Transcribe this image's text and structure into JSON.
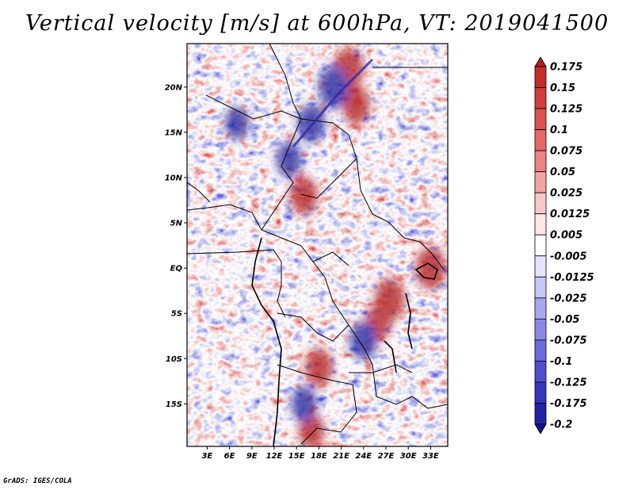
{
  "map": {
    "title": "Vertical velocity [m/s] at 600hPa, VT: 2019041500",
    "lon_labels": [
      "3E",
      "6E",
      "9E",
      "12E",
      "15E",
      "18E",
      "21E",
      "24E",
      "27E",
      "30E",
      "33E"
    ],
    "lon_values": [
      3,
      6,
      9,
      12,
      15,
      18,
      21,
      24,
      27,
      30,
      33
    ],
    "lat_labels": [
      "20N",
      "15N",
      "10N",
      "5N",
      "EQ",
      "5S",
      "10S",
      "15S"
    ],
    "lat_values": [
      20,
      15,
      10,
      5,
      0,
      -5,
      -10,
      -15
    ],
    "lon_range": [
      0.3,
      35.3
    ],
    "lat_range": [
      -19.7,
      24.8
    ],
    "colorbar": {
      "labels": [
        "0.175",
        "0.15",
        "0.125",
        "0.1",
        "0.075",
        "0.05",
        "0.025",
        "0.0125",
        "0.005",
        "-0.005",
        "-0.0125",
        "-0.025",
        "-0.05",
        "-0.075",
        "-0.1",
        "-0.125",
        "-0.175",
        "-0.2"
      ],
      "colors": [
        "#b41e1e",
        "#c52b2b",
        "#d23c3c",
        "#dc5252",
        "#e46868",
        "#ec8484",
        "#f2a4a4",
        "#f8c8c8",
        "#fde6e6",
        "#ffffff",
        "#e4e4fb",
        "#c8c8f5",
        "#a8a8ee",
        "#8a8ae6",
        "#6c6cdc",
        "#4f4fcf",
        "#3636bd",
        "#2222a6",
        "#12128c"
      ]
    },
    "highlights": [
      {
        "lon": 22,
        "lat": 22,
        "value": 0.15
      },
      {
        "lon": 23,
        "lat": 18,
        "value": 0.12
      },
      {
        "lon": 16,
        "lat": 8,
        "value": 0.12
      },
      {
        "lon": 27.5,
        "lat": -3.5,
        "value": 0.15
      },
      {
        "lon": 26,
        "lat": -6,
        "value": 0.1
      },
      {
        "lon": 18,
        "lat": -11,
        "value": 0.12
      },
      {
        "lon": 33,
        "lat": 0,
        "value": 0.15
      },
      {
        "lon": 17,
        "lat": -18,
        "value": 0.1
      },
      {
        "lon": 20,
        "lat": 20,
        "value": -0.15
      },
      {
        "lon": 17,
        "lat": 16,
        "value": -0.12
      },
      {
        "lon": 14,
        "lat": 12,
        "value": -0.1
      },
      {
        "lon": 24,
        "lat": -8,
        "value": -0.12
      },
      {
        "lon": 16,
        "lat": -15,
        "value": -0.1
      },
      {
        "lon": 7,
        "lat": 16,
        "value": -0.08
      }
    ]
  },
  "footer": {
    "credit": "GrADS: IGES/COLA"
  }
}
